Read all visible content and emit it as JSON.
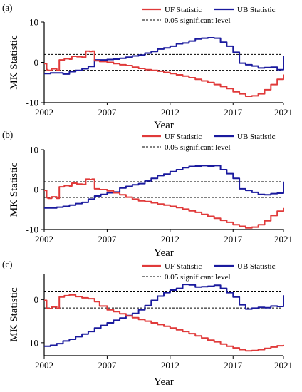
{
  "colors": {
    "uf": "#e03a3a",
    "ub": "#1a1a9e",
    "sig": "#000000"
  },
  "chart_data": [
    {
      "type": "line",
      "panel_label": "(a)",
      "xlabel": "Year",
      "ylabel": "MK Statistic",
      "xlim": [
        2002,
        2021
      ],
      "ylim": [
        -10,
        10
      ],
      "xticks": [
        2002,
        2007,
        2012,
        2017,
        2021
      ],
      "yticks": [
        -10,
        0,
        10
      ],
      "legend_location": "top",
      "series": [
        {
          "name": "UF Statistic",
          "x": [
            2002.0,
            2002.2,
            2002.3,
            2002.6,
            2003.0,
            2003.2,
            2003.6,
            2004.0,
            2004.2,
            2004.6,
            2005.0,
            2005.3,
            2005.6,
            2005.8,
            2006.0,
            2006.4,
            2007.0,
            2007.5,
            2008.0,
            2008.5,
            2009.0,
            2009.5,
            2010.0,
            2010.5,
            2011.0,
            2011.5,
            2012.0,
            2012.5,
            2013.0,
            2013.5,
            2014.0,
            2014.5,
            2015.0,
            2015.5,
            2016.0,
            2016.5,
            2017.0,
            2017.5,
            2018.0,
            2018.5,
            2019.0,
            2019.5,
            2020.0,
            2020.5,
            2021.0
          ],
          "y": [
            -0.3,
            -1.8,
            -2.0,
            -1.6,
            -2.0,
            0.6,
            0.9,
            0.8,
            1.5,
            1.4,
            1.3,
            2.8,
            2.7,
            2.8,
            0.4,
            0.2,
            0.0,
            -0.3,
            -0.6,
            -0.8,
            -1.2,
            -1.5,
            -1.8,
            -2.0,
            -2.2,
            -2.5,
            -2.8,
            -3.1,
            -3.4,
            -3.8,
            -4.2,
            -4.6,
            -5.0,
            -5.5,
            -6.0,
            -6.5,
            -7.3,
            -7.8,
            -8.4,
            -8.3,
            -7.8,
            -6.8,
            -5.5,
            -4.2,
            -3.0
          ]
        },
        {
          "name": "UB Statistic",
          "x": [
            2002.0,
            2002.5,
            2003.0,
            2003.5,
            2004.0,
            2004.5,
            2005.0,
            2005.5,
            2006.0,
            2006.5,
            2007.0,
            2007.5,
            2008.0,
            2008.5,
            2009.0,
            2009.5,
            2010.0,
            2010.5,
            2011.0,
            2011.5,
            2012.0,
            2012.5,
            2013.0,
            2013.5,
            2014.0,
            2014.5,
            2015.0,
            2015.5,
            2016.0,
            2016.5,
            2017.0,
            2017.5,
            2018.0,
            2018.5,
            2019.0,
            2019.5,
            2020.0,
            2020.5,
            2021.0
          ],
          "y": [
            -2.8,
            -2.6,
            -2.6,
            -2.9,
            -2.3,
            -2.0,
            -1.6,
            -1.0,
            0.6,
            0.6,
            0.7,
            0.8,
            1.0,
            1.3,
            1.6,
            1.8,
            2.3,
            2.7,
            3.3,
            3.6,
            4.0,
            4.6,
            4.8,
            5.3,
            5.8,
            6.0,
            6.1,
            6.0,
            5.0,
            4.0,
            2.5,
            -0.2,
            -0.6,
            -0.9,
            -1.4,
            -1.3,
            -1.2,
            -1.8,
            1.6
          ]
        },
        {
          "name": "0.05 significant level",
          "style": "dashed",
          "levels": [
            1.96,
            -1.96
          ]
        }
      ]
    },
    {
      "type": "line",
      "panel_label": "(b)",
      "xlabel": "Year",
      "ylabel": "MK Statistic",
      "xlim": [
        2002,
        2021
      ],
      "ylim": [
        -10,
        10
      ],
      "xticks": [
        2002,
        2007,
        2012,
        2017,
        2021
      ],
      "yticks": [
        -10,
        0,
        10
      ],
      "legend_location": "top",
      "series": [
        {
          "name": "UF Statistic",
          "x": [
            2002.0,
            2002.2,
            2002.3,
            2002.6,
            2003.0,
            2003.2,
            2003.6,
            2004.0,
            2004.2,
            2004.6,
            2005.0,
            2005.3,
            2005.6,
            2005.8,
            2006.0,
            2006.4,
            2007.0,
            2007.5,
            2008.0,
            2008.5,
            2009.0,
            2009.5,
            2010.0,
            2010.5,
            2011.0,
            2011.5,
            2012.0,
            2012.5,
            2013.0,
            2013.5,
            2014.0,
            2014.5,
            2015.0,
            2015.5,
            2016.0,
            2016.5,
            2017.0,
            2017.5,
            2018.0,
            2018.5,
            2019.0,
            2019.5,
            2020.0,
            2020.5,
            2021.0
          ],
          "y": [
            -0.2,
            -2.0,
            -2.2,
            -1.8,
            -2.2,
            0.7,
            1.0,
            0.9,
            1.6,
            1.4,
            1.3,
            2.6,
            2.5,
            2.6,
            0.2,
            0.0,
            -0.3,
            -0.8,
            -1.3,
            -1.9,
            -2.4,
            -2.8,
            -3.0,
            -3.3,
            -3.6,
            -3.9,
            -4.2,
            -4.5,
            -4.9,
            -5.3,
            -5.7,
            -6.2,
            -6.7,
            -7.2,
            -7.7,
            -8.2,
            -8.8,
            -9.2,
            -9.6,
            -9.4,
            -8.8,
            -7.8,
            -6.5,
            -5.4,
            -4.6
          ]
        },
        {
          "name": "UB Statistic",
          "x": [
            2002.0,
            2002.5,
            2003.0,
            2003.5,
            2004.0,
            2004.5,
            2005.0,
            2005.5,
            2006.0,
            2006.5,
            2007.0,
            2007.5,
            2008.0,
            2008.5,
            2009.0,
            2009.5,
            2010.0,
            2010.5,
            2011.0,
            2011.5,
            2012.0,
            2012.5,
            2013.0,
            2013.5,
            2014.0,
            2014.5,
            2015.0,
            2015.5,
            2016.0,
            2016.5,
            2017.0,
            2017.5,
            2018.0,
            2018.5,
            2019.0,
            2019.5,
            2020.0,
            2020.5,
            2021.0
          ],
          "y": [
            -4.6,
            -4.6,
            -4.4,
            -4.2,
            -3.9,
            -3.5,
            -3.2,
            -2.4,
            -1.6,
            -1.2,
            -0.8,
            -0.6,
            0.4,
            0.8,
            1.2,
            1.5,
            2.2,
            2.8,
            3.5,
            3.9,
            4.5,
            5.0,
            5.5,
            5.8,
            5.9,
            6.0,
            5.9,
            6.0,
            5.0,
            4.0,
            2.8,
            0.2,
            -0.2,
            -0.7,
            -1.2,
            -1.3,
            -1.0,
            -0.9,
            2.0
          ]
        },
        {
          "name": "0.05 significant level",
          "style": "dashed",
          "levels": [
            1.96,
            -1.96
          ]
        }
      ]
    },
    {
      "type": "line",
      "panel_label": "(c)",
      "xlabel": "Year",
      "ylabel": "MK Statistic",
      "xlim": [
        2002,
        2021
      ],
      "ylim": [
        -13,
        6
      ],
      "xticks": [
        2002,
        2007,
        2012,
        2017,
        2021
      ],
      "yticks": [
        -10,
        0
      ],
      "legend_location": "top",
      "series": [
        {
          "name": "UF Statistic",
          "x": [
            2002.0,
            2002.2,
            2002.3,
            2002.6,
            2003.0,
            2003.2,
            2003.6,
            2004.0,
            2004.5,
            2005.0,
            2005.5,
            2006.0,
            2006.4,
            2007.0,
            2007.5,
            2008.0,
            2008.5,
            2009.0,
            2009.5,
            2010.0,
            2010.5,
            2011.0,
            2011.5,
            2012.0,
            2012.5,
            2013.0,
            2013.5,
            2014.0,
            2014.5,
            2015.0,
            2015.5,
            2016.0,
            2016.5,
            2017.0,
            2017.5,
            2018.0,
            2018.5,
            2019.0,
            2019.5,
            2020.0,
            2020.5,
            2021.0
          ],
          "y": [
            -0.2,
            -2.0,
            -2.1,
            -1.7,
            -2.1,
            0.6,
            0.9,
            1.1,
            0.7,
            0.4,
            0.2,
            -0.5,
            -1.5,
            -2.4,
            -2.8,
            -3.3,
            -3.8,
            -4.2,
            -4.6,
            -5.0,
            -5.4,
            -5.8,
            -6.2,
            -6.6,
            -7.0,
            -7.4,
            -7.9,
            -8.4,
            -8.9,
            -9.4,
            -9.8,
            -10.3,
            -10.8,
            -11.2,
            -11.6,
            -11.9,
            -11.8,
            -11.6,
            -11.3,
            -11.0,
            -10.7,
            -10.5
          ]
        },
        {
          "name": "UB Statistic",
          "x": [
            2002.0,
            2002.5,
            2003.0,
            2003.5,
            2004.0,
            2004.5,
            2005.0,
            2005.5,
            2006.0,
            2006.5,
            2007.0,
            2007.5,
            2008.0,
            2008.5,
            2009.0,
            2009.5,
            2010.0,
            2010.5,
            2011.0,
            2011.5,
            2012.0,
            2012.5,
            2013.0,
            2013.5,
            2014.0,
            2014.5,
            2015.0,
            2015.5,
            2016.0,
            2016.5,
            2017.0,
            2017.5,
            2018.0,
            2018.5,
            2019.0,
            2019.5,
            2020.0,
            2020.5,
            2021.0
          ],
          "y": [
            -10.8,
            -10.6,
            -10.2,
            -9.6,
            -9.2,
            -8.6,
            -8.0,
            -7.4,
            -6.6,
            -6.0,
            -5.4,
            -4.8,
            -4.3,
            -3.7,
            -3.2,
            -2.4,
            -1.4,
            -0.2,
            0.8,
            1.6,
            2.2,
            2.6,
            3.5,
            3.4,
            2.9,
            3.0,
            3.1,
            3.3,
            2.6,
            1.6,
            0.6,
            -1.2,
            -2.2,
            -2.0,
            -1.8,
            -1.9,
            -1.5,
            -1.6,
            1.0
          ]
        },
        {
          "name": "0.05 significant level",
          "style": "dashed",
          "levels": [
            1.96,
            -1.96
          ]
        }
      ]
    }
  ]
}
